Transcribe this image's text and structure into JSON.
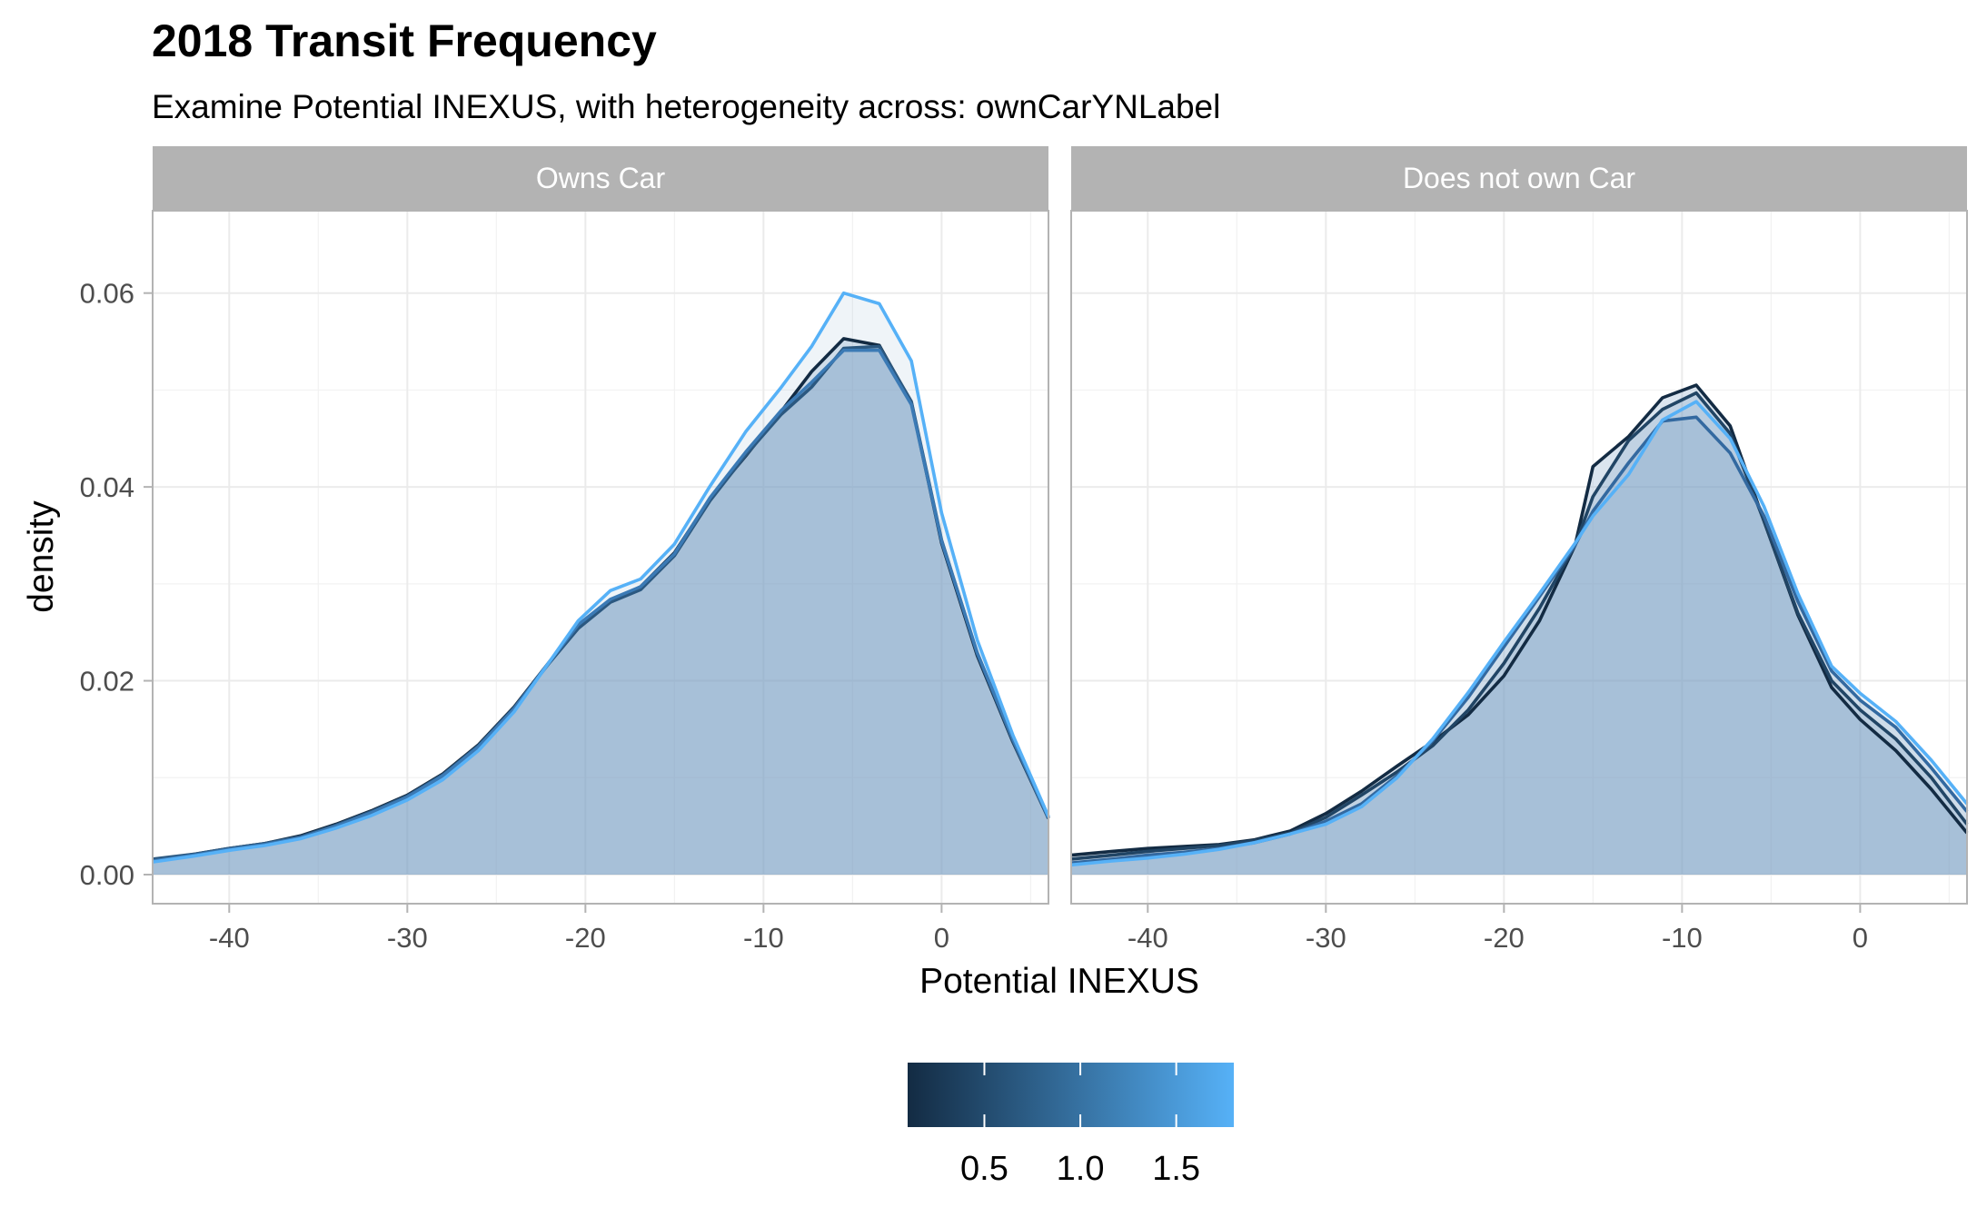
{
  "chart_data": {
    "type": "area",
    "title": "2018 Transit Frequency",
    "subtitle": "Examine Potential INEXUS, with heterogeneity across: ownCarYNLabel",
    "xlabel": "Potential INEXUS",
    "ylabel": "density",
    "xlim": [
      -44.3,
      6
    ],
    "ylim": [
      -0.003,
      0.0685
    ],
    "x_ticks": [
      -40,
      -30,
      -20,
      -10,
      0
    ],
    "x_tick_labels": [
      "-40",
      "-30",
      "-20",
      "-10",
      "0"
    ],
    "y_ticks": [
      0.0,
      0.02,
      0.04,
      0.06
    ],
    "y_tick_labels": [
      "0.00",
      "0.02",
      "0.04",
      "0.06"
    ],
    "grid": true,
    "fill_color": "#7fa3c5",
    "fill_opacity": 0.72,
    "legend": {
      "position": "bottom",
      "type": "colorbar",
      "low_color": "#132b43",
      "high_color": "#56b1f7",
      "range": [
        0.1,
        1.8
      ],
      "ticks": [
        0.5,
        1.0,
        1.5
      ],
      "tick_labels": [
        "0.5",
        "1.0",
        "1.5"
      ]
    },
    "panels": [
      {
        "strip": "Owns Car",
        "x": [
          -44.3,
          -42,
          -40,
          -38,
          -36,
          -34,
          -32,
          -30,
          -28,
          -26,
          -24,
          -22,
          -20.4,
          -18.6,
          -16.9,
          -15,
          -13,
          -11,
          -9,
          -7.3,
          -5.5,
          -3.5,
          -1.7,
          0,
          2,
          4,
          6
        ],
        "series": [
          {
            "value": 0.1,
            "color": "#132b43",
            "y": [
              0.0015,
              0.0021,
              0.0027,
              0.0032,
              0.004,
              0.0052,
              0.0066,
              0.0082,
              0.0104,
              0.0134,
              0.0173,
              0.022,
              0.0255,
              0.0282,
              0.0297,
              0.0332,
              0.0388,
              0.0432,
              0.0478,
              0.0519,
              0.0553,
              0.0546,
              0.0487,
              0.0342,
              0.0226,
              0.0137,
              0.0058
            ]
          },
          {
            "value": 0.9,
            "color": "#2b5880",
            "y": [
              0.0016,
              0.0021,
              0.0027,
              0.0032,
              0.0039,
              0.0051,
              0.0065,
              0.0081,
              0.0103,
              0.0133,
              0.0172,
              0.0219,
              0.0254,
              0.0281,
              0.0294,
              0.0329,
              0.0386,
              0.0433,
              0.0475,
              0.0503,
              0.0543,
              0.0545,
              0.0488,
              0.0345,
              0.0228,
              0.0138,
              0.0058
            ]
          },
          {
            "value": 1.3,
            "color": "#3b7ab5",
            "y": [
              0.0014,
              0.002,
              0.0026,
              0.0031,
              0.0038,
              0.005,
              0.0064,
              0.008,
              0.0102,
              0.0132,
              0.0171,
              0.022,
              0.0258,
              0.0284,
              0.0297,
              0.0331,
              0.0389,
              0.0436,
              0.0479,
              0.0508,
              0.0541,
              0.0541,
              0.0485,
              0.0344,
              0.0229,
              0.014,
              0.0059
            ]
          },
          {
            "value": 1.8,
            "color": "#56b1f7",
            "y": [
              0.0013,
              0.0019,
              0.0025,
              0.003,
              0.0037,
              0.0048,
              0.0061,
              0.0077,
              0.0098,
              0.0128,
              0.0168,
              0.022,
              0.0262,
              0.0293,
              0.0305,
              0.0341,
              0.0401,
              0.0457,
              0.0503,
              0.0545,
              0.06,
              0.0589,
              0.053,
              0.0373,
              0.0242,
              0.0144,
              0.006
            ]
          }
        ]
      },
      {
        "strip": "Does not own Car",
        "x": [
          -44.3,
          -42,
          -40,
          -38,
          -36,
          -34,
          -32,
          -30,
          -28,
          -26,
          -24,
          -22,
          -20,
          -18,
          -16,
          -15,
          -13,
          -11.1,
          -9.2,
          -7.3,
          -5.4,
          -3.5,
          -1.6,
          0,
          2,
          4,
          6
        ],
        "series": [
          {
            "value": 0.1,
            "color": "#132b43",
            "y": [
              0.002,
              0.0024,
              0.0027,
              0.0029,
              0.0031,
              0.0036,
              0.0045,
              0.0063,
              0.0086,
              0.0112,
              0.0137,
              0.0165,
              0.0205,
              0.0262,
              0.034,
              0.0421,
              0.0452,
              0.0492,
              0.0505,
              0.0463,
              0.0365,
              0.0268,
              0.0193,
              0.016,
              0.0128,
              0.0088,
              0.0043
            ]
          },
          {
            "value": 0.6,
            "color": "#214565",
            "y": [
              0.0016,
              0.002,
              0.0024,
              0.0027,
              0.003,
              0.0035,
              0.0043,
              0.0059,
              0.0082,
              0.0106,
              0.0133,
              0.017,
              0.0218,
              0.0275,
              0.034,
              0.039,
              0.0448,
              0.048,
              0.0497,
              0.0455,
              0.0365,
              0.027,
              0.02,
              0.017,
              0.014,
              0.01,
              0.0052
            ]
          },
          {
            "value": 1.1,
            "color": "#3369a0",
            "y": [
              0.0012,
              0.0016,
              0.002,
              0.0023,
              0.0027,
              0.0033,
              0.0042,
              0.0055,
              0.0073,
              0.0102,
              0.0138,
              0.0183,
              0.0235,
              0.0287,
              0.034,
              0.0375,
              0.0425,
              0.0468,
              0.0472,
              0.0435,
              0.037,
              0.0282,
              0.021,
              0.018,
              0.0152,
              0.011,
              0.0065
            ]
          },
          {
            "value": 1.8,
            "color": "#56b1f7",
            "y": [
              0.001,
              0.0014,
              0.0017,
              0.0021,
              0.0026,
              0.0033,
              0.0042,
              0.0052,
              0.007,
              0.01,
              0.014,
              0.0188,
              0.024,
              0.029,
              0.0342,
              0.037,
              0.0413,
              0.0469,
              0.0488,
              0.045,
              0.038,
              0.029,
              0.0215,
              0.0187,
              0.0158,
              0.0118,
              0.0073
            ]
          }
        ]
      }
    ]
  }
}
